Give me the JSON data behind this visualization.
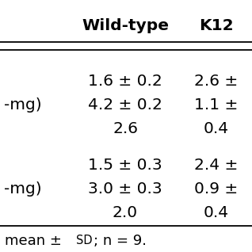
{
  "col_headers": [
    "Wild-type",
    "K12"
  ],
  "section1": [
    [
      "1.6 ± 0.2",
      "2.6 ±"
    ],
    [
      "4.2 ± 0.2",
      "1.1 ±"
    ],
    [
      "2.6",
      "0.4"
    ]
  ],
  "section2": [
    [
      "1.5 ± 0.3",
      "2.4 ±"
    ],
    [
      "3.0 ± 0.3",
      "0.9 ±"
    ],
    [
      "2.0",
      "0.4"
    ]
  ],
  "row_label_1": "-mg)",
  "row_label_2": "-mg)",
  "footnote_main": "mean ± ",
  "footnote_sd": "SD",
  "footnote_end": "; n = 9.",
  "bg_color": "#ffffff",
  "header_fontsize": 14.5,
  "body_fontsize": 14.5,
  "footnote_fontsize": 13.0,
  "footnote_sd_fontsize": 10.5
}
